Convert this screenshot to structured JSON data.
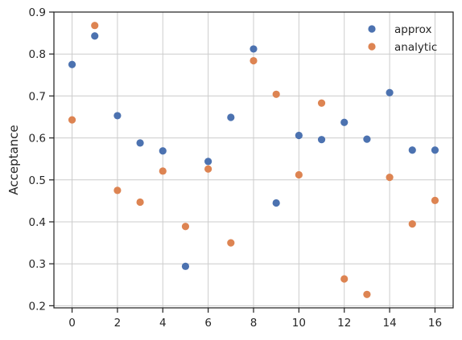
{
  "chart_data": {
    "type": "scatter",
    "xlabel": "",
    "ylabel": "Acceptance",
    "xlim": [
      -0.8,
      16.8
    ],
    "ylim": [
      0.195,
      0.9
    ],
    "xticks": [
      0,
      2,
      4,
      6,
      8,
      10,
      12,
      14,
      16
    ],
    "xtick_labels": [
      "0",
      "2",
      "4",
      "6",
      "8",
      "10",
      "12",
      "14",
      "16"
    ],
    "yticks": [
      0.2,
      0.3,
      0.4,
      0.5,
      0.6,
      0.7,
      0.8,
      0.9
    ],
    "ytick_labels": [
      "0.2",
      "0.3",
      "0.4",
      "0.5",
      "0.6",
      "0.7",
      "0.8",
      "0.9"
    ],
    "grid": true,
    "legend_position": "top-right",
    "x": [
      0,
      1,
      2,
      3,
      4,
      5,
      6,
      7,
      8,
      9,
      10,
      11,
      12,
      13,
      14,
      15,
      16
    ],
    "series": [
      {
        "name": "approx",
        "color": "#4c72b0",
        "values": [
          0.775,
          0.843,
          0.653,
          0.588,
          0.569,
          0.294,
          0.544,
          0.649,
          0.812,
          0.445,
          0.606,
          0.596,
          0.637,
          0.597,
          0.708,
          0.571,
          0.571
        ]
      },
      {
        "name": "analytic",
        "color": "#dd8452",
        "values": [
          0.643,
          0.868,
          0.475,
          0.447,
          0.521,
          0.389,
          0.526,
          0.35,
          0.784,
          0.704,
          0.512,
          0.683,
          0.264,
          0.227,
          0.506,
          0.395,
          0.451
        ]
      }
    ]
  }
}
